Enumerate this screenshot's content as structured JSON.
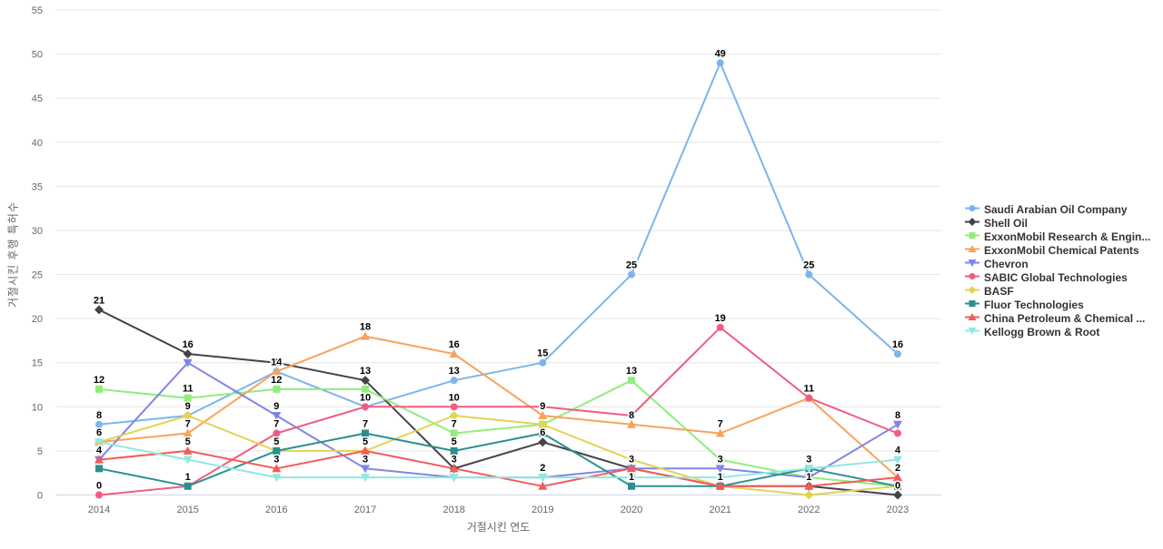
{
  "page": {
    "background": "#ffffff"
  },
  "chart_data": {
    "type": "line",
    "title": "",
    "categories": [
      "2014",
      "2015",
      "2016",
      "2017",
      "2018",
      "2019",
      "2020",
      "2021",
      "2022",
      "2023"
    ],
    "xlabel": "거절시킨 연도",
    "ylabel": "거절시킨 후행 특허수",
    "ylim": [
      0,
      55
    ],
    "y_ticks": [
      0,
      5,
      10,
      15,
      20,
      25,
      30,
      35,
      40,
      45,
      50,
      55
    ],
    "grid": true,
    "legend_position": "right",
    "colors": {
      "gridline": "#e6e6e6",
      "axis_line": "#ccd6eb",
      "tick_label": "#666666",
      "axis_title": "#666666",
      "data_label": "#000000",
      "legend_text": "#333333"
    },
    "series": [
      {
        "name": "Saudi Arabian Oil Company",
        "slug": "saudi-arabian-oil-company",
        "color": "#7cb5ec",
        "marker": "circle",
        "values": [
          8,
          9,
          14,
          10,
          13,
          15,
          25,
          49,
          25,
          16
        ],
        "labels_visible": [
          1,
          1,
          1,
          1,
          1,
          1,
          1,
          1,
          1,
          1
        ]
      },
      {
        "name": "Shell Oil",
        "slug": "shell-oil",
        "color": "#434348",
        "marker": "diamond",
        "values": [
          21,
          16,
          15,
          13,
          3,
          6,
          3,
          1,
          1,
          0
        ],
        "labels_visible": [
          1,
          1,
          0,
          1,
          1,
          1,
          1,
          1,
          1,
          1
        ]
      },
      {
        "name": "ExxonMobil Research & Engin...",
        "slug": "exxonmobil-research-engineering",
        "color": "#90ed7d",
        "marker": "square",
        "values": [
          12,
          11,
          12,
          12,
          7,
          8,
          13,
          4,
          2,
          1
        ],
        "labels_visible": [
          1,
          1,
          1,
          0,
          1,
          0,
          1,
          0,
          0,
          0
        ]
      },
      {
        "name": "ExxonMobil Chemical Patents",
        "slug": "exxonmobil-chemical-patents",
        "color": "#f7a35c",
        "marker": "triangle",
        "values": [
          6,
          7,
          14,
          18,
          16,
          9,
          8,
          7,
          11,
          2
        ],
        "labels_visible": [
          1,
          1,
          0,
          1,
          1,
          1,
          1,
          1,
          0,
          1
        ]
      },
      {
        "name": "Chevron",
        "slug": "chevron",
        "color": "#8085e9",
        "marker": "triangle-down",
        "values": [
          4,
          15,
          9,
          3,
          2,
          2,
          3,
          3,
          2,
          8
        ],
        "labels_visible": [
          1,
          0,
          1,
          1,
          0,
          0,
          0,
          1,
          0,
          1
        ]
      },
      {
        "name": "SABIC Global Technologies",
        "slug": "sabic-global-technologies",
        "color": "#f15c80",
        "marker": "circle",
        "values": [
          0,
          1,
          7,
          10,
          10,
          10,
          9,
          19,
          11,
          7
        ],
        "labels_visible": [
          1,
          1,
          1,
          0,
          1,
          0,
          0,
          1,
          1,
          0
        ]
      },
      {
        "name": "BASF",
        "slug": "basf",
        "color": "#e4d354",
        "marker": "diamond",
        "values": [
          6,
          9,
          5,
          5,
          9,
          8,
          4,
          1,
          0,
          1
        ],
        "labels_visible": [
          0,
          0,
          1,
          0,
          0,
          0,
          0,
          0,
          0,
          0
        ]
      },
      {
        "name": "Fluor Technologies",
        "slug": "fluor-technologies",
        "color": "#2b908f",
        "marker": "square",
        "values": [
          3,
          1,
          5,
          7,
          5,
          7,
          1,
          1,
          3,
          1
        ],
        "labels_visible": [
          0,
          0,
          0,
          1,
          1,
          0,
          1,
          0,
          1,
          0
        ]
      },
      {
        "name": "China Petroleum & Chemical ...",
        "slug": "china-petroleum-chemical",
        "color": "#f45b5b",
        "marker": "triangle",
        "values": [
          4,
          5,
          3,
          5,
          3,
          1,
          3,
          1,
          1,
          2
        ],
        "labels_visible": [
          0,
          1,
          1,
          1,
          0,
          0,
          0,
          0,
          0,
          0
        ]
      },
      {
        "name": "Kellogg Brown & Root",
        "slug": "kellogg-brown-root",
        "color": "#91e8e1",
        "marker": "triangle-down",
        "values": [
          6,
          4,
          2,
          2,
          2,
          2,
          2,
          2,
          3,
          4
        ],
        "labels_visible": [
          0,
          0,
          0,
          0,
          0,
          1,
          0,
          0,
          0,
          1
        ]
      }
    ]
  }
}
